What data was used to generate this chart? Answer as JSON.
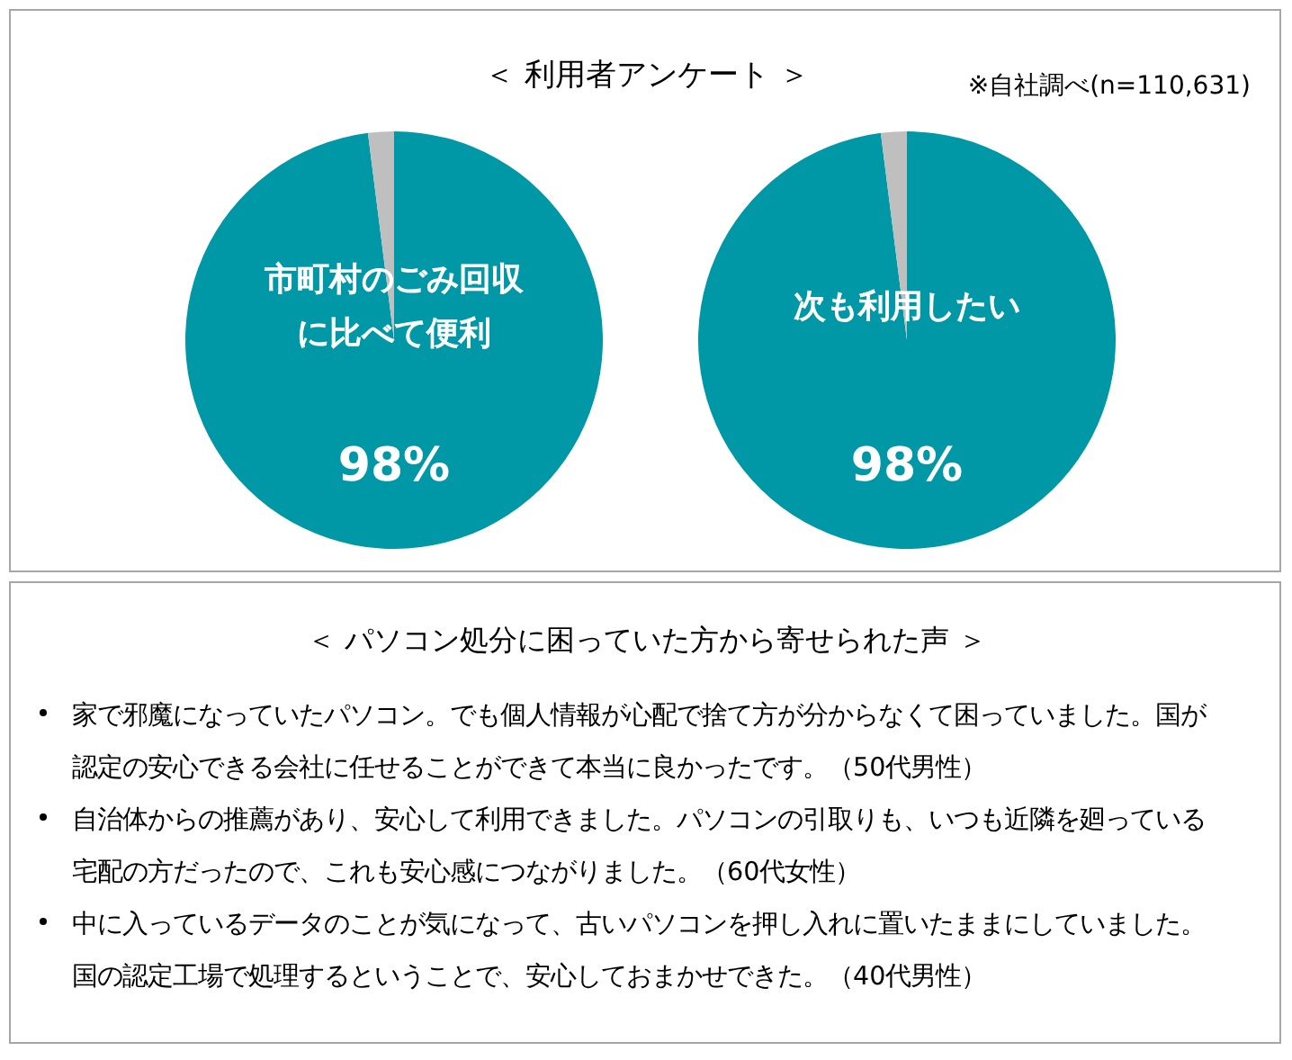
{
  "chart_data": [
    {
      "type": "pie",
      "title": "＜ 利用者アンケート ＞",
      "categories": [
        "市町村のごみ回収に比べて便利",
        null
      ],
      "values": [
        98,
        2
      ],
      "colors": [
        "#0097a7",
        "#bfbfbf"
      ],
      "value_labels": [
        "98%",
        null
      ]
    },
    {
      "type": "pie",
      "categories": [
        "次も利用したい",
        null
      ],
      "values": [
        98,
        2
      ],
      "colors": [
        "#0097a7",
        "#bfbfbf"
      ],
      "value_labels": [
        "98%",
        null
      ],
      "annotations": [
        "※自社調べ(n=110,631)"
      ]
    },
    {
      "type": "other",
      "title": "＜ パソコン処分に困っていた方から寄せられた声 ＞",
      "annotations": [
        "家で邪魔になっていたパソコン。でも個人情報が心配で捨て方が分からなくて困っていました。国が認定の安心できる会社に任せることができて本当に良かったです。（50代男性）",
        "自治体からの推薦があり、安心して利用できました。パソコンの引取りも、いつも近隣を廻っている宅配の方だったので、これも安心感につながりました。（60代女性）",
        "中に入っているデータのことが気になって、古いパソコンを押し入れに置いたままにしていました。国の認定工場で処理するということで、安心しておまかせできた。（40代男性）"
      ]
    }
  ]
}
